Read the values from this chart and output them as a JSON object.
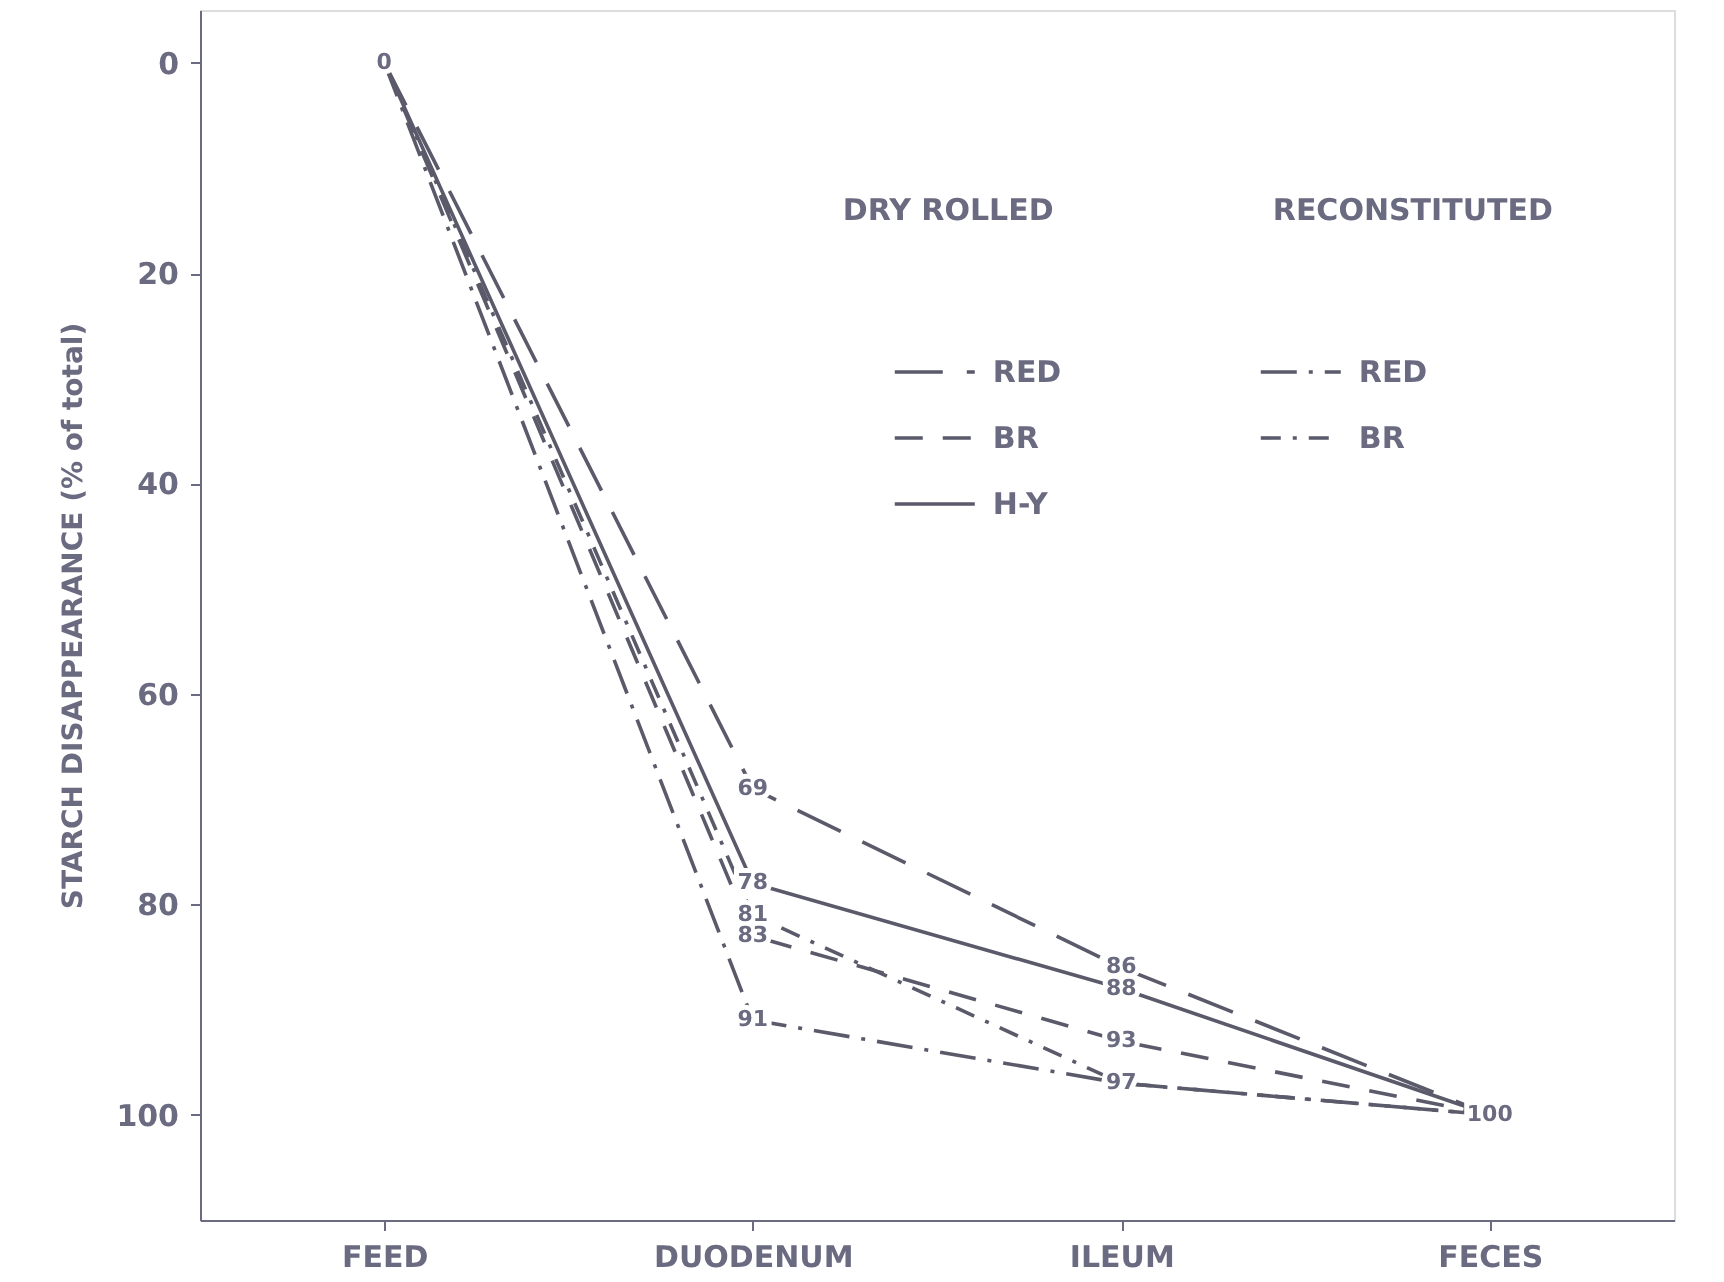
{
  "chart_data": {
    "type": "line",
    "ylabel": "STARCH DISAPPEARANCE (% of total)",
    "categories": [
      "FEED",
      "DUODENUM",
      "ILEUM",
      "FECES"
    ],
    "ylim": [
      110,
      -5
    ],
    "yticks": [
      0,
      20,
      40,
      60,
      80,
      100
    ],
    "grid": false,
    "legend": "top right",
    "annotations": [
      "DRY ROLLED",
      "RECONSTITUTED"
    ],
    "series": [
      {
        "name": "RED",
        "color": "#5a5a6a",
        "line_style": "longdash",
        "values": [
          0,
          69,
          86,
          100
        ],
        "value_labels": [
          "0",
          "69",
          "86",
          "100"
        ]
      },
      {
        "name": "BR",
        "color": "#5a5a6a",
        "line_style": "dashed",
        "values": [
          0,
          83,
          93,
          100
        ],
        "value_labels": [
          null,
          "83",
          "93",
          null
        ]
      },
      {
        "name": "H-Y",
        "color": "#5a5a6a",
        "line_style": "solid",
        "values": [
          0,
          78,
          88,
          100
        ],
        "value_labels": [
          null,
          "78",
          "88",
          null
        ]
      },
      {
        "name": "RED",
        "color": "#5a5a6a",
        "line_style": "longdashdot",
        "values": [
          0,
          91,
          97,
          100
        ],
        "value_labels": [
          null,
          "91",
          "97",
          null
        ]
      },
      {
        "name": "BR",
        "color": "#5a5a6a",
        "line_style": "dashdot",
        "values": [
          0,
          81,
          97,
          100
        ],
        "value_labels": [
          null,
          "81",
          null,
          null
        ]
      }
    ]
  }
}
